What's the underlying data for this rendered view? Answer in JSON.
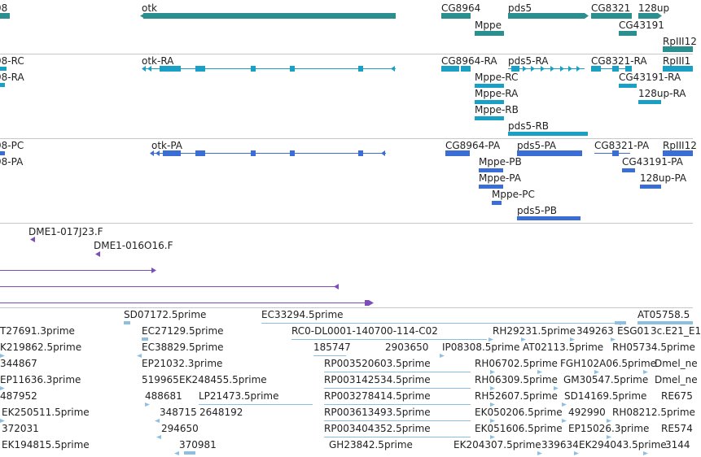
{
  "genes": [
    {
      "name": "98",
      "color": "#2b8f8f"
    },
    {
      "name": "otk",
      "color": "#2b8f8f"
    },
    {
      "name": "CG8964",
      "color": "#2b8f8f"
    },
    {
      "name": "Mppe",
      "color": "#2b8f8f"
    },
    {
      "name": "pds5",
      "color": "#2b8f8f"
    },
    {
      "name": "CG8321",
      "color": "#2b8f8f"
    },
    {
      "name": "128up",
      "color": "#2b8f8f"
    },
    {
      "name": "CG43191",
      "color": "#2b8f8f"
    },
    {
      "name": "RpIII12",
      "color": "#2b8f8f"
    }
  ],
  "transcripts_ra": [
    "98-RC",
    "98-RA",
    "otk-RA",
    "CG8964-RA",
    "pds5-RA",
    "CG8321-RA",
    "RpIII1",
    "Mppe-RC",
    "CG43191-RA",
    "Mppe-RA",
    "128up-RA",
    "Mppe-RB",
    "pds5-RB"
  ],
  "proteins": [
    "98-PC",
    "98-PA",
    "otk-PA",
    "CG8964-PA",
    "pds5-PA",
    "CG8321-PA",
    "RpIII12",
    "Mppe-PB",
    "CG43191-PA",
    "Mppe-PA",
    "128up-PA",
    "Mppe-PC",
    "pds5-PB"
  ],
  "clones": [
    "DME1-017J23.F",
    "DME1-016O16.F"
  ],
  "ests": [
    "SD07172.5prime",
    "EC33294.5prime",
    "AT05758.5",
    "T27691.3prime",
    "EC27129.5prime",
    "RC0-DL0001-140700-114-C02",
    "RH29231.5prime",
    "349263",
    "ESG01",
    "3c.E21_E1",
    "K219862.5prime",
    "EC38829.5prime",
    "185747",
    "2903650",
    "IP08308.5prime",
    "AT02113.5prime",
    "RH05734.5prime",
    "344867",
    "EP21032.3prime",
    "RP003520603.5prime",
    "RH06702.5prime",
    "FGH102A06.5prime",
    "Dmel_ne",
    "EP11636.3prime",
    "519965",
    "EK248455.5prime",
    "RP003142534.5prime",
    "RH06309.5prime",
    "GM30547.5prime",
    "Dmel_ne",
    "487952",
    "488681",
    "LP21473.5prime",
    "RP003278414.5prime",
    "RH52607.5prime",
    "SD14169.5prime",
    "RE675",
    "EK250511.5prime",
    "348715",
    "2648192",
    "RP003613493.5prime",
    "EK050206.5prime",
    "492990",
    "RH08212.5prime",
    "372031",
    "294650",
    "RP003404352.5prime",
    "EK051606.5prime",
    "EP15026.3prime",
    "RE574",
    "EK194815.5prime",
    "370981",
    "GH23842.5prime",
    "EK204307.5prime",
    "339634",
    "EK294043.5prime",
    "3144"
  ],
  "colors": {
    "gene": "#2b8f8f",
    "mrna": "#1aa0c4",
    "protein": "#3a6ed4",
    "clone": "#7b4fb8",
    "est": "#8cbfe0",
    "separator": "#c8c8c8"
  }
}
